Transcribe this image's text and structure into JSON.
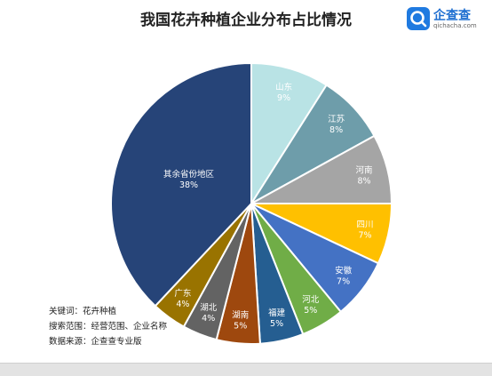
{
  "chart_data": {
    "type": "pie",
    "title": "我国花卉种植企业分布占比情况",
    "slices": [
      {
        "label": "山东",
        "value": 9,
        "display": "9%",
        "color": "#b9e3e5",
        "text_color": "#ffffff"
      },
      {
        "label": "江苏",
        "value": 8,
        "display": "8%",
        "color": "#6e9daa",
        "text_color": "#ffffff"
      },
      {
        "label": "河南",
        "value": 8,
        "display": "8%",
        "color": "#a5a5a5",
        "text_color": "#ffffff"
      },
      {
        "label": "四川",
        "value": 7,
        "display": "7%",
        "color": "#ffc000",
        "text_color": "#ffffff"
      },
      {
        "label": "安徽",
        "value": 7,
        "display": "7%",
        "color": "#4472c4",
        "text_color": "#ffffff"
      },
      {
        "label": "河北",
        "value": 5,
        "display": "5%",
        "color": "#70ad47",
        "text_color": "#ffffff"
      },
      {
        "label": "福建",
        "value": 5,
        "display": "5%",
        "color": "#255e91",
        "text_color": "#ffffff"
      },
      {
        "label": "湖南",
        "value": 5,
        "display": "5%",
        "color": "#9e480e",
        "text_color": "#ffffff"
      },
      {
        "label": "湖北",
        "value": 4,
        "display": "4%",
        "color": "#636363",
        "text_color": "#ffffff"
      },
      {
        "label": "广东",
        "value": 4,
        "display": "4%",
        "color": "#997300",
        "text_color": "#ffffff"
      },
      {
        "label": "其余省份地区",
        "value": 38,
        "display": "38%",
        "color": "#264478",
        "text_color": "#ffffff"
      }
    ],
    "legend": "none"
  },
  "logo": {
    "name": "企查查",
    "url": "qichacha.com"
  },
  "meta": {
    "keyword": "关键词：花卉种植",
    "scope": "搜索范围：经营范围、企业名称",
    "source": "数据来源：企查查专业版"
  }
}
